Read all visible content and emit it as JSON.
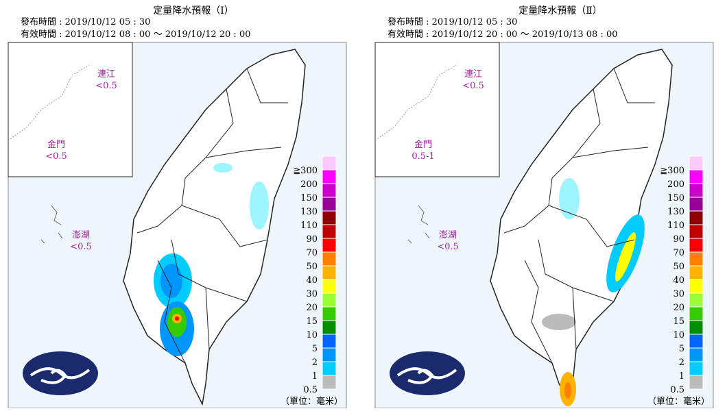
{
  "panels": [
    {
      "title": "定量降水預報（Ⅰ）",
      "issued": "發布時間 : 2019/10/12 05 : 30",
      "valid": "有效時間 : 2019/10/12 08 : 00 ～ 2019/10/12 20 : 00",
      "insets": [
        {
          "name": "連江",
          "value": "<0.5"
        },
        {
          "name": "金門",
          "value": "<0.5"
        },
        {
          "name": "澎湖",
          "value": "<0.5"
        }
      ],
      "unit": "（單位：毫米）"
    },
    {
      "title": "定量降水預報（Ⅱ）",
      "issued": "發布時間 : 2019/10/12 05 : 30",
      "valid": "有效時間 : 2019/10/12 20 : 00 ～ 2019/10/13 08 : 00",
      "insets": [
        {
          "name": "連江",
          "value": "<0.5"
        },
        {
          "name": "金門",
          "value": "0.5-1"
        },
        {
          "name": "澎湖",
          "value": "<0.5"
        }
      ],
      "unit": "（單位：毫米）"
    }
  ],
  "legend": {
    "labels": [
      "≧300",
      "200",
      "150",
      "130",
      "110",
      "90",
      "70",
      "50",
      "40",
      "30",
      "20",
      "15",
      "10",
      "5",
      "2",
      "1",
      "0.5"
    ],
    "colors": [
      "#fbc8fb",
      "#ff00ff",
      "#cc00cc",
      "#990099",
      "#8b0000",
      "#c00000",
      "#ff0000",
      "#ff7f00",
      "#ffb300",
      "#ffff00",
      "#99ff33",
      "#33cc00",
      "#008f00",
      "#0064ff",
      "#0096ff",
      "#00ccff",
      "#bbbbbb"
    ]
  }
}
